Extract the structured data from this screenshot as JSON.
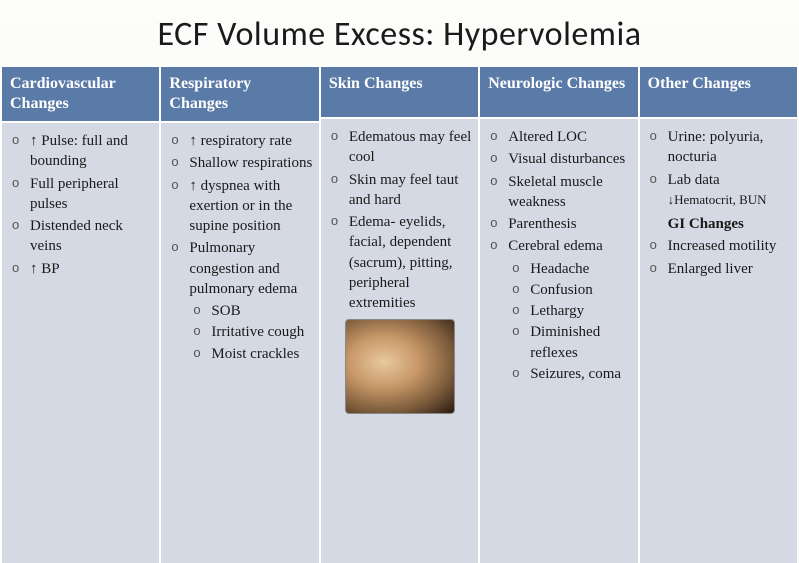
{
  "title": "ECF Volume Excess: Hypervolemia",
  "columns": [
    {
      "header": "Cardiovascular Changes",
      "items": [
        {
          "text": "↑ Pulse: full and bounding"
        },
        {
          "text": "Full peripheral pulses"
        },
        {
          "text": "Distended neck veins"
        },
        {
          "text": "↑ BP"
        }
      ]
    },
    {
      "header": "Respiratory Changes",
      "items": [
        {
          "text": "↑ respiratory rate"
        },
        {
          "text": "Shallow respirations"
        },
        {
          "text": "↑ dyspnea with exertion or in the supine position"
        },
        {
          "text": "Pulmonary congestion and pulmonary edema",
          "sub": [
            {
              "text": "SOB"
            },
            {
              "text": "Irritative cough"
            },
            {
              "text": "Moist crackles"
            }
          ]
        }
      ]
    },
    {
      "header": "Skin Changes",
      "items": [
        {
          "text": "Edematous may feel cool"
        },
        {
          "text": "Skin may feel taut and hard"
        },
        {
          "text": "Edema- eyelids, facial, dependent (sacrum), pitting, peripheral extremities"
        }
      ],
      "has_photo": true
    },
    {
      "header": "Neurologic Changes",
      "items": [
        {
          "text": "Altered LOC"
        },
        {
          "text": "Visual disturbances"
        },
        {
          "text": "Skeletal muscle weakness"
        },
        {
          "text": "Parenthesis"
        },
        {
          "text": "Cerebral edema",
          "sub": [
            {
              "text": "Headache"
            },
            {
              "text": "Confusion"
            },
            {
              "text": "Lethargy"
            },
            {
              "text": "Diminished reflexes"
            },
            {
              "text": "Seizures, coma"
            }
          ]
        }
      ]
    },
    {
      "header": "Other Changes",
      "items": [
        {
          "text": "Urine: polyuria, nocturia"
        },
        {
          "text": "Lab data ↓Hematocrit, BUN",
          "small_tail": true
        }
      ],
      "subheading": "GI Changes",
      "items2": [
        {
          "text": "Increased motility"
        },
        {
          "text": "Enlarged liver"
        }
      ]
    }
  ]
}
